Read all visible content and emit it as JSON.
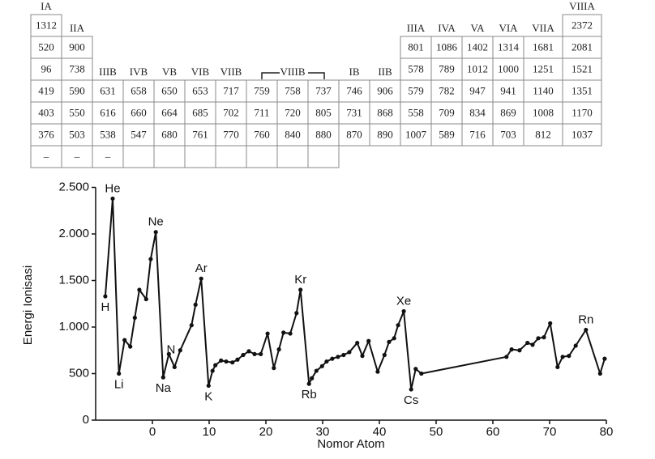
{
  "table": {
    "headers": [
      "IA",
      "IIA",
      "IIIB",
      "IVB",
      "VB",
      "VIB",
      "VIIB",
      null,
      "VIIIB",
      null,
      "IB",
      "IIB",
      "IIIA",
      "IVA",
      "VA",
      "VIA",
      "VIIA",
      "VIIIA"
    ],
    "rows": [
      [
        1312,
        null,
        null,
        null,
        null,
        null,
        null,
        null,
        null,
        null,
        null,
        null,
        null,
        null,
        null,
        null,
        null,
        2372
      ],
      [
        520,
        900,
        null,
        null,
        null,
        null,
        null,
        null,
        null,
        null,
        null,
        null,
        801,
        1086,
        1402,
        1314,
        1681,
        2081
      ],
      [
        96,
        738,
        null,
        null,
        null,
        null,
        null,
        null,
        null,
        null,
        null,
        null,
        578,
        789,
        1012,
        1000,
        1251,
        1521
      ],
      [
        419,
        590,
        631,
        658,
        650,
        653,
        717,
        759,
        758,
        737,
        746,
        906,
        579,
        782,
        947,
        941,
        1140,
        1351
      ],
      [
        403,
        550,
        616,
        660,
        664,
        685,
        702,
        711,
        720,
        805,
        731,
        868,
        558,
        709,
        834,
        869,
        1008,
        1170
      ],
      [
        376,
        503,
        538,
        547,
        680,
        761,
        770,
        760,
        840,
        880,
        870,
        890,
        1007,
        589,
        716,
        703,
        812,
        1037
      ],
      [
        "–",
        "–",
        "–",
        null,
        null,
        null,
        null,
        null,
        null,
        null,
        null,
        null,
        null,
        null,
        null,
        null,
        null,
        null
      ]
    ]
  },
  "chart_data": {
    "type": "line",
    "x_label": "Nomor Atom",
    "y_label": "Energi Ionisasi",
    "x": [
      -8.3,
      -7.0,
      -5.9,
      -4.9,
      -3.9,
      -3.1,
      -2.3,
      -1.1,
      -0.3,
      0.6,
      1.9,
      2.9,
      3.9,
      4.9,
      6.9,
      7.6,
      8.6,
      9.9,
      10.6,
      11.1,
      12.1,
      13.0,
      14.1,
      15.0,
      16.0,
      17.0,
      18.0,
      19.1,
      20.3,
      21.4,
      22.3,
      23.1,
      24.3,
      25.4,
      26.1,
      27.6,
      28.1,
      28.9,
      29.9,
      30.7,
      31.7,
      32.7,
      33.7,
      34.7,
      36.1,
      37.0,
      38.1,
      39.7,
      40.9,
      41.7,
      42.6,
      43.3,
      44.3,
      45.6,
      46.4,
      47.4,
      62.4,
      63.3,
      64.7,
      66.1,
      67.0,
      68.0,
      69.0,
      70.1,
      71.4,
      72.3,
      73.4,
      74.6,
      76.4,
      78.9,
      79.7
    ],
    "values": [
      1330,
      2380,
      500,
      860,
      790,
      1100,
      1400,
      1300,
      1730,
      2020,
      460,
      710,
      570,
      750,
      1020,
      1240,
      1520,
      370,
      530,
      590,
      640,
      630,
      620,
      650,
      700,
      740,
      710,
      710,
      930,
      560,
      760,
      940,
      930,
      1150,
      1400,
      390,
      450,
      530,
      580,
      630,
      660,
      680,
      700,
      730,
      830,
      690,
      850,
      520,
      700,
      840,
      880,
      1020,
      1170,
      330,
      550,
      500,
      680,
      760,
      750,
      830,
      810,
      880,
      890,
      1040,
      570,
      680,
      690,
      800,
      970,
      500,
      660
    ],
    "point_labels": [
      "H",
      "He",
      "Li",
      null,
      null,
      null,
      null,
      null,
      null,
      "Ne",
      "Na",
      null,
      null,
      "N",
      null,
      null,
      "Ar",
      "K",
      null,
      null,
      null,
      null,
      null,
      null,
      null,
      null,
      null,
      null,
      null,
      null,
      null,
      null,
      null,
      null,
      "Kr",
      "Rb",
      null,
      null,
      null,
      null,
      null,
      null,
      null,
      null,
      null,
      null,
      null,
      null,
      null,
      null,
      null,
      null,
      "Xe",
      "Cs",
      null,
      null,
      null,
      null,
      null,
      null,
      null,
      null,
      null,
      null,
      null,
      null,
      null,
      null,
      "Rn",
      null,
      null
    ],
    "color": "#111111",
    "xlim": [
      -10,
      80
    ],
    "xticks": [
      0,
      10,
      20,
      30,
      40,
      50,
      60,
      70,
      80
    ],
    "ylim": [
      0,
      2500
    ],
    "yticks": [
      0,
      500,
      {
        "value": 1000,
        "label": "1.000"
      },
      {
        "value": 1500,
        "label": "1.500"
      },
      {
        "value": 2000,
        "label": "2.000"
      },
      {
        "value": 2500,
        "label": "2.500"
      }
    ]
  }
}
